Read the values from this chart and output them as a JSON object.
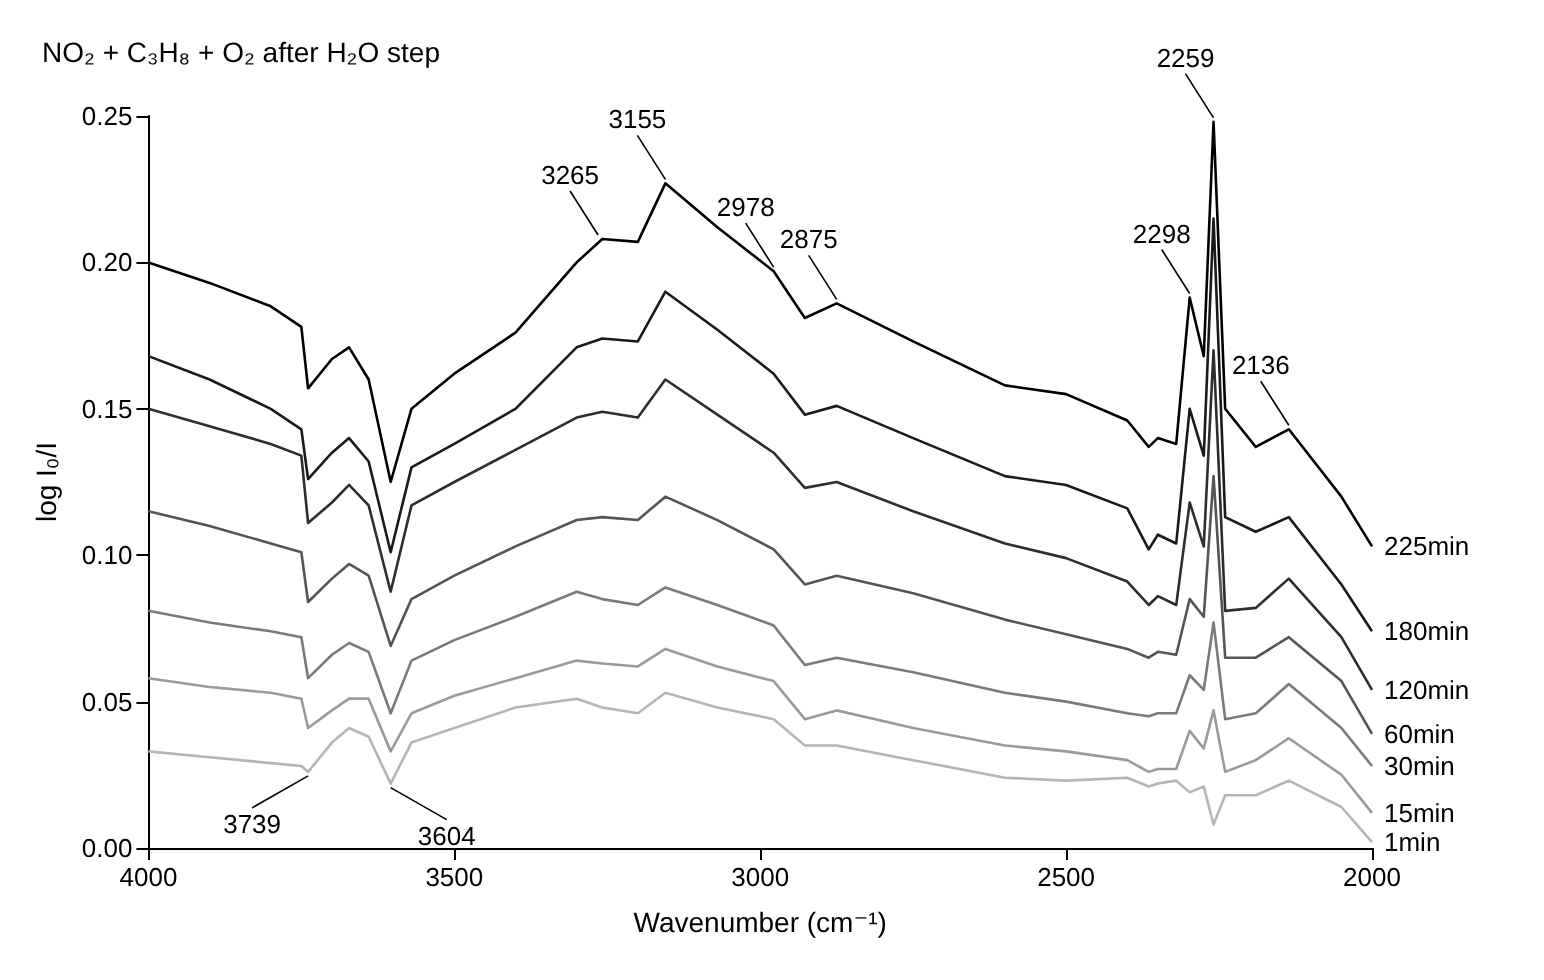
{
  "chart_data": {
    "type": "line",
    "title": "NO₂ + C₃H₈ + O₂ after H₂O step",
    "xlabel": "Wavenumber (cm⁻¹)",
    "ylabel": "log I₀/I",
    "x": [
      4000,
      3900,
      3800,
      3750,
      3739,
      3700,
      3672,
      3640,
      3604,
      3570,
      3500,
      3400,
      3300,
      3258,
      3200,
      3155,
      3070,
      2978,
      2927,
      2875,
      2750,
      2600,
      2500,
      2400,
      2365,
      2350,
      2320,
      2298,
      2275,
      2259,
      2240,
      2190,
      2136,
      2050,
      2000
    ],
    "xlim": [
      4000,
      2000
    ],
    "xticks": [
      4000,
      3500,
      3000,
      2500,
      2000
    ],
    "ylim": [
      0,
      0.25
    ],
    "yticks": [
      {
        "value": 0,
        "label": "0.00"
      },
      {
        "value": 0.05,
        "label": "0.05"
      },
      {
        "value": 0.1,
        "label": "0.10"
      },
      {
        "value": 0.15,
        "label": "0.15"
      },
      {
        "value": 0.2,
        "label": "0.20"
      },
      {
        "value": 0.25,
        "label": "0.25"
      }
    ],
    "grid": false,
    "legend": false,
    "series": [
      {
        "name": "225min",
        "color": "#000000",
        "values": [
          0.2,
          0.193,
          0.185,
          0.178,
          0.157,
          0.167,
          0.171,
          0.16,
          0.125,
          0.15,
          0.162,
          0.176,
          0.2,
          0.208,
          0.207,
          0.227,
          0.212,
          0.197,
          0.181,
          0.186,
          0.173,
          0.158,
          0.155,
          0.146,
          0.137,
          0.14,
          0.138,
          0.188,
          0.168,
          0.248,
          0.15,
          0.137,
          0.143,
          0.12,
          0.103
        ]
      },
      {
        "name": "180min",
        "color": "#1a1a1a",
        "values": [
          0.168,
          0.16,
          0.15,
          0.143,
          0.126,
          0.135,
          0.14,
          0.132,
          0.101,
          0.13,
          0.138,
          0.15,
          0.171,
          0.174,
          0.173,
          0.19,
          0.177,
          0.162,
          0.148,
          0.151,
          0.14,
          0.127,
          0.124,
          0.116,
          0.102,
          0.107,
          0.104,
          0.15,
          0.134,
          0.215,
          0.113,
          0.108,
          0.113,
          0.09,
          0.074
        ]
      },
      {
        "name": "120min",
        "color": "#2e2e2e",
        "values": [
          0.15,
          0.144,
          0.138,
          0.134,
          0.111,
          0.118,
          0.124,
          0.117,
          0.0875,
          0.117,
          0.125,
          0.136,
          0.147,
          0.149,
          0.147,
          0.16,
          0.148,
          0.135,
          0.123,
          0.125,
          0.115,
          0.104,
          0.099,
          0.091,
          0.083,
          0.086,
          0.083,
          0.118,
          0.103,
          0.17,
          0.081,
          0.082,
          0.092,
          0.072,
          0.054
        ]
      },
      {
        "name": "60min",
        "color": "#555555",
        "values": [
          0.115,
          0.11,
          0.104,
          0.101,
          0.084,
          0.092,
          0.097,
          0.093,
          0.069,
          0.085,
          0.093,
          0.103,
          0.112,
          0.113,
          0.112,
          0.12,
          0.112,
          0.102,
          0.09,
          0.093,
          0.087,
          0.078,
          0.073,
          0.068,
          0.065,
          0.067,
          0.066,
          0.085,
          0.079,
          0.127,
          0.065,
          0.065,
          0.072,
          0.057,
          0.039
        ]
      },
      {
        "name": "30min",
        "color": "#7a7a7a",
        "values": [
          0.081,
          0.077,
          0.074,
          0.072,
          0.058,
          0.066,
          0.07,
          0.067,
          0.046,
          0.064,
          0.071,
          0.079,
          0.0875,
          0.085,
          0.083,
          0.089,
          0.083,
          0.076,
          0.0625,
          0.065,
          0.06,
          0.053,
          0.05,
          0.046,
          0.045,
          0.046,
          0.046,
          0.059,
          0.054,
          0.077,
          0.044,
          0.046,
          0.056,
          0.041,
          0.028
        ]
      },
      {
        "name": "15min",
        "color": "#9a9a9a",
        "values": [
          0.058,
          0.055,
          0.053,
          0.051,
          0.041,
          0.047,
          0.051,
          0.051,
          0.033,
          0.046,
          0.052,
          0.058,
          0.064,
          0.063,
          0.062,
          0.068,
          0.062,
          0.057,
          0.044,
          0.047,
          0.041,
          0.035,
          0.033,
          0.03,
          0.026,
          0.027,
          0.027,
          0.04,
          0.034,
          0.047,
          0.026,
          0.03,
          0.0375,
          0.025,
          0.012
        ]
      },
      {
        "name": "1min",
        "color": "#b5b5b5",
        "values": [
          0.033,
          0.031,
          0.029,
          0.028,
          0.026,
          0.036,
          0.041,
          0.038,
          0.022,
          0.036,
          0.041,
          0.048,
          0.051,
          0.048,
          0.046,
          0.053,
          0.048,
          0.044,
          0.035,
          0.035,
          0.03,
          0.024,
          0.023,
          0.024,
          0.021,
          0.022,
          0.023,
          0.019,
          0.021,
          0.008,
          0.018,
          0.018,
          0.023,
          0.014,
          0.002
        ]
      }
    ],
    "annotations": [
      {
        "text": "3739",
        "x": 3739,
        "y": 0.026
      },
      {
        "text": "3604",
        "x": 3604,
        "y": 0.022
      },
      {
        "text": "3265",
        "x": 3265,
        "y": 0.208
      },
      {
        "text": "3155",
        "x": 3155,
        "y": 0.227
      },
      {
        "text": "2978",
        "x": 2978,
        "y": 0.197
      },
      {
        "text": "2875",
        "x": 2875,
        "y": 0.186
      },
      {
        "text": "2298",
        "x": 2298,
        "y": 0.188
      },
      {
        "text": "2259",
        "x": 2259,
        "y": 0.248
      },
      {
        "text": "2136",
        "x": 2136,
        "y": 0.143
      }
    ]
  }
}
